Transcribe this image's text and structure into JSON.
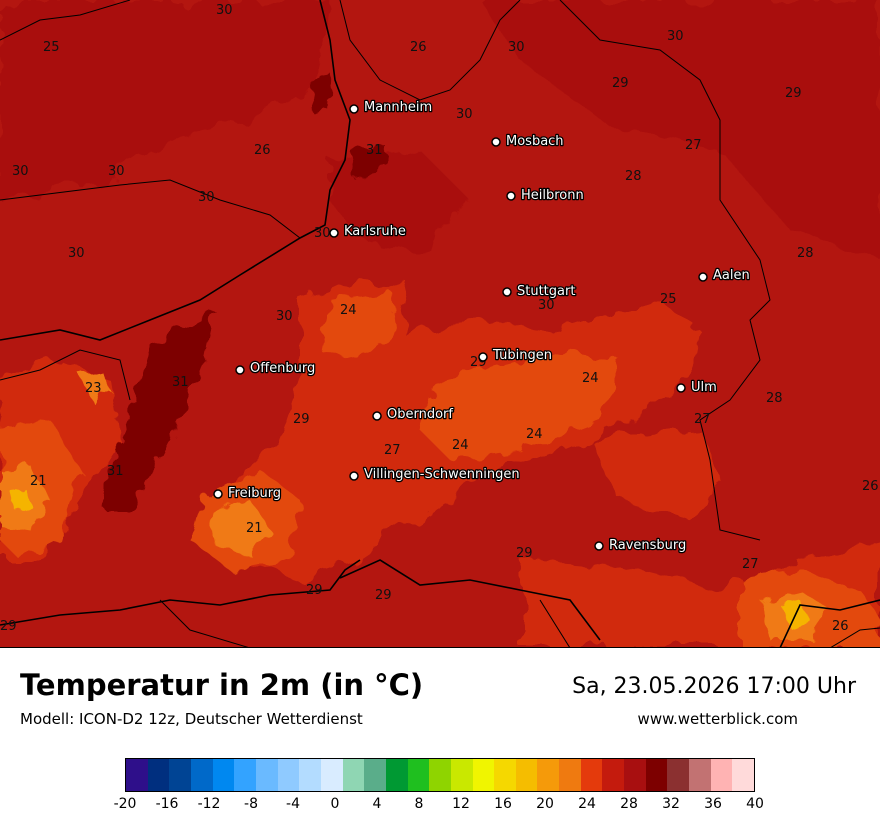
{
  "title": "Temperatur in 2m (in °C)",
  "model": "Modell: ICON-D2 12z, Deutscher Wetterdienst",
  "datetime": "Sa, 23.05.2026 17:00 Uhr",
  "website": "www.wetterblick.com",
  "cities": [
    {
      "name": "Mannheim"
    },
    {
      "name": "Mosbach"
    },
    {
      "name": "Heilbronn"
    },
    {
      "name": "Karlsruhe"
    },
    {
      "name": "Aalen"
    },
    {
      "name": "Stuttgart"
    },
    {
      "name": "Tübingen"
    },
    {
      "name": "Offenburg"
    },
    {
      "name": "Ulm"
    },
    {
      "name": "Oberndorf"
    },
    {
      "name": "Villingen-Schwenningen"
    },
    {
      "name": "Freiburg"
    },
    {
      "name": "Ravensburg"
    }
  ],
  "isotherm_labels": [
    "30",
    "25",
    "26",
    "30",
    "30",
    "29",
    "29",
    "30",
    "26",
    "31",
    "27",
    "30",
    "30",
    "28",
    "30",
    "30",
    "30",
    "28",
    "24",
    "30",
    "25",
    "30",
    "23",
    "31",
    "29",
    "24",
    "27",
    "28",
    "29",
    "24",
    "27",
    "24",
    "21",
    "31",
    "26",
    "21",
    "29",
    "29",
    "29",
    "27",
    "26",
    "29"
  ],
  "legend": {
    "colors": [
      "#2e0f8a",
      "#002f7f",
      "#004494",
      "#0069c9",
      "#0088f0",
      "#33a3ff",
      "#6abaff",
      "#8fcaff",
      "#b3dcff",
      "#d9ecff",
      "#8fd6b3",
      "#5aad8a",
      "#009933",
      "#1fbf1f",
      "#8fd400",
      "#c9e800",
      "#f0f500",
      "#f5d800",
      "#f5bd00",
      "#f59a0a",
      "#ef7a10",
      "#e43a0c",
      "#c41b0d",
      "#a80f10",
      "#7d0000",
      "#8b3030",
      "#c27272",
      "#ffb3b3",
      "#ffdada"
    ],
    "ticks": [
      "-20",
      "-16",
      "-12",
      "-8",
      "-4",
      "0",
      "4",
      "8",
      "12",
      "16",
      "20",
      "24",
      "28",
      "32",
      "36",
      "40"
    ]
  }
}
